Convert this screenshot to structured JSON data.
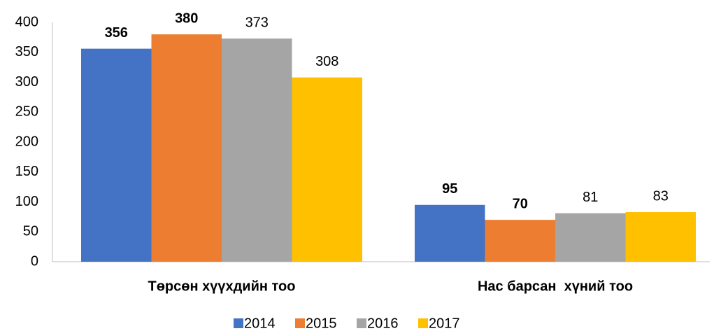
{
  "chart_data": {
    "type": "bar",
    "categories": [
      "Төрсөн хүүхдийн тоо",
      "Нас барсан  хүний тоо"
    ],
    "series": [
      {
        "name": "2014",
        "color": "#4472c4",
        "label_color": "#8497b0",
        "label_bold": true,
        "values": [
          356,
          95
        ]
      },
      {
        "name": "2015",
        "color": "#ed7d31",
        "label_color": "#c55a11",
        "label_bold": true,
        "values": [
          380,
          70
        ]
      },
      {
        "name": "2016",
        "color": "#a5a5a5",
        "label_color": "#000000",
        "label_bold": false,
        "values": [
          373,
          81
        ]
      },
      {
        "name": "2017",
        "color": "#ffc000",
        "label_color": "#000000",
        "label_bold": false,
        "values": [
          308,
          83
        ]
      }
    ],
    "ylim": [
      0,
      400
    ],
    "yticks": [
      0,
      50,
      100,
      150,
      200,
      250,
      300,
      350,
      400
    ],
    "grid": false,
    "legend": "bottom"
  }
}
